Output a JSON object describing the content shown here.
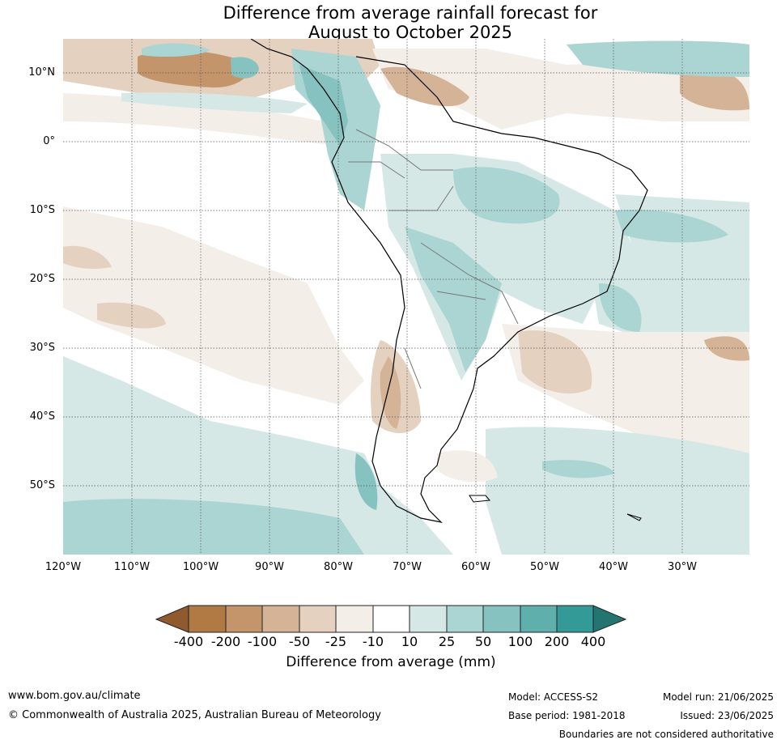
{
  "title": {
    "line1": "Difference from average rainfall forecast for",
    "line2": "August to October 2025"
  },
  "axes": {
    "lat_labels": [
      "10°N",
      "0°",
      "10°S",
      "20°S",
      "30°S",
      "40°S",
      "50°S"
    ],
    "lon_labels": [
      "120°W",
      "110°W",
      "100°W",
      "90°W",
      "80°W",
      "70°W",
      "60°W",
      "50°W",
      "40°W",
      "30°W"
    ]
  },
  "colorbar": {
    "tick_labels": [
      "-400",
      "-200",
      "-100",
      "-50",
      "-25",
      "-10",
      "10",
      "25",
      "50",
      "100",
      "200",
      "400"
    ],
    "colors": [
      "#8f5a2e",
      "#b07a45",
      "#c4956a",
      "#d4b396",
      "#e5d1c0",
      "#f3eee8",
      "#ffffff",
      "#d5e8e6",
      "#abd5d3",
      "#86c2c0",
      "#5fb0ad",
      "#349a97",
      "#247472"
    ],
    "label": "Difference from average (mm)"
  },
  "footer": {
    "website": "www.bom.gov.au/climate",
    "copyright": "© Commonwealth of Australia 2025, Australian Bureau of Meteorology",
    "model": "Model: ACCESS-S2",
    "base_period": "Base period: 1981-2018",
    "model_run": "Model run: 21/06/2025",
    "issued": "Issued: 23/06/2025",
    "boundaries": "Boundaries are not considered authoritative"
  }
}
